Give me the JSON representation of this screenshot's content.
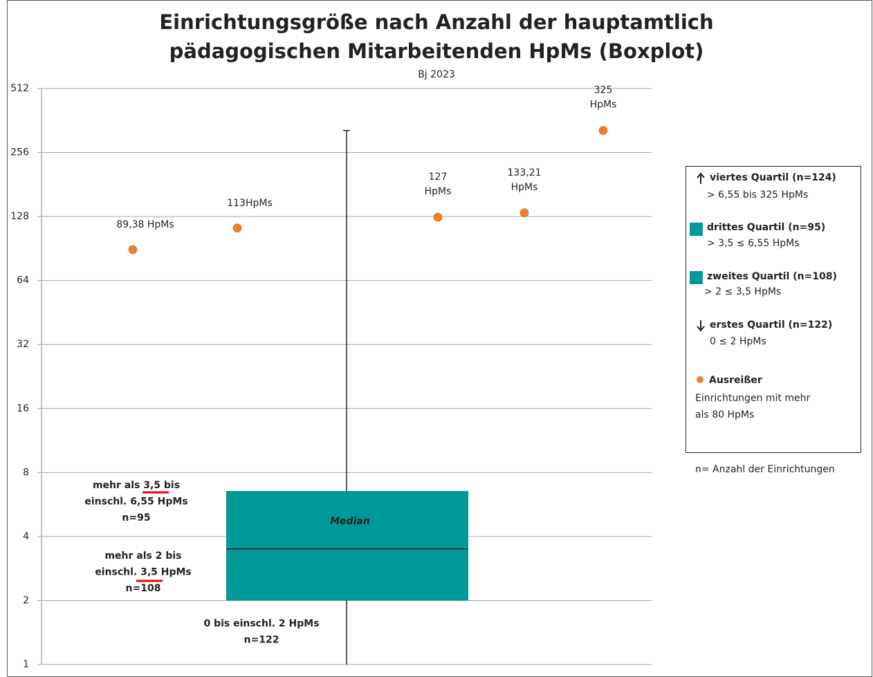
{
  "chart_data": {
    "type": "box",
    "title": [
      "Einrichtungsgröße nach Anzahl der hauptamtlich",
      "pädagogischen Mitarbeitenden HpMs (Boxplot)"
    ],
    "subtitle": "Bj 2023",
    "ylim": [
      1,
      512
    ],
    "yticks": [
      1,
      2,
      4,
      8,
      16,
      32,
      64,
      128,
      256,
      512
    ],
    "log_scale": true,
    "log_base": 2,
    "grid": true,
    "box": {
      "q1": 2,
      "median": 3.5,
      "q3": 6.55,
      "whisker_low": 1,
      "whisker_high": 325,
      "color": "#009999",
      "median_label": "Median"
    },
    "outliers": {
      "name": "Ausreißer",
      "color": "#ed7d31",
      "values": [
        89.38,
        113,
        127,
        133.21,
        325
      ],
      "value_labels": [
        [
          "89,38 HpMs"
        ],
        [
          "113HpMs"
        ],
        [
          "127",
          "HpMs"
        ],
        [
          "133,21",
          "HpMs"
        ],
        [
          "325",
          "HpMs"
        ]
      ]
    },
    "annotations": [
      [
        "mehr als 3,5 bis",
        "einschl. 6,55 HpMs",
        "n=95"
      ],
      [
        "mehr als 2 bis",
        "einschl. 3,5 HpMs",
        "n=108"
      ],
      [
        "0 bis einschl. 2 HpMs",
        "n=122"
      ]
    ],
    "legend": [
      {
        "title": "viertes Quartil (n=124)",
        "detail": [
          "> 6,55 bis 325 HpMs"
        ]
      },
      {
        "title": "drittes Quartil (n=95)",
        "detail": [
          "> 3,5 ≤ 6,55 HpMs"
        ]
      },
      {
        "title": "zweites Quartil (n=108)",
        "detail": [
          "> 2 ≤ 3,5 HpMs"
        ]
      },
      {
        "title": "erstes Quartil (n=122)",
        "detail": [
          "0  ≤ 2 HpMs"
        ]
      },
      {
        "detail": [
          "Einrichtungen mit mehr",
          "als 80 HpMs"
        ]
      }
    ],
    "footnote": "n= Anzahl der Einrichtungen"
  }
}
